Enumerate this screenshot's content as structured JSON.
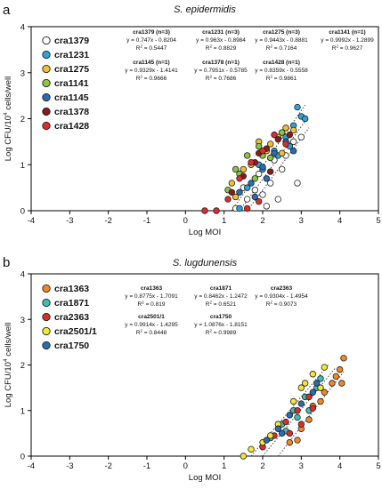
{
  "chart_data": [
    {
      "type": "scatter",
      "panel_letter": "a",
      "title": "S. epidermidis",
      "xlabel": "Log MOI",
      "ylabel_main": "Log CFU/10",
      "ylabel_sup": "4",
      "ylabel_tail": " cells/well",
      "xlim": [
        -4,
        5
      ],
      "ylim": [
        0,
        4
      ],
      "xticks": [
        -4,
        -3,
        -2,
        -1,
        0,
        1,
        2,
        3,
        4,
        5
      ],
      "yticks": [
        0,
        1,
        2,
        3,
        4
      ],
      "grid": false,
      "legend_position": "top-left",
      "series": [
        {
          "name": "cra1379",
          "color": "#ffffff",
          "points": [
            [
              1.3,
              0.05
            ],
            [
              1.6,
              0.25
            ],
            [
              1.8,
              0.45
            ],
            [
              2.0,
              0.35
            ],
            [
              2.2,
              0.6
            ],
            [
              2.5,
              0.9
            ],
            [
              1.9,
              0.8
            ],
            [
              2.6,
              1.2
            ],
            [
              2.8,
              1.5
            ],
            [
              1.5,
              0.5
            ],
            [
              2.3,
              1.1
            ],
            [
              2.9,
              0.6
            ],
            [
              2.1,
              0.1
            ],
            [
              3.0,
              1.6
            ],
            [
              2.4,
              0.25
            ]
          ]
        },
        {
          "name": "cra1231",
          "color": "#2ea3dc",
          "points": [
            [
              1.6,
              0.5
            ],
            [
              2.0,
              0.9
            ],
            [
              2.3,
              1.3
            ],
            [
              2.6,
              1.6
            ],
            [
              2.8,
              1.85
            ],
            [
              3.0,
              2.05
            ],
            [
              2.9,
              2.25
            ],
            [
              3.1,
              2.0
            ],
            [
              2.4,
              1.2
            ],
            [
              1.9,
              1.0
            ],
            [
              2.7,
              1.4
            ],
            [
              1.4,
              0.05
            ]
          ]
        },
        {
          "name": "cra1275",
          "color": "#f2c02e",
          "points": [
            [
              1.2,
              0.6
            ],
            [
              1.5,
              0.9
            ],
            [
              1.9,
              1.5
            ],
            [
              2.1,
              1.3
            ],
            [
              2.4,
              1.6
            ],
            [
              2.6,
              1.8
            ],
            [
              2.8,
              1.75
            ],
            [
              1.3,
              0.3
            ],
            [
              1.7,
              1.0
            ],
            [
              2.2,
              1.45
            ],
            [
              2.5,
              1.25
            ]
          ]
        },
        {
          "name": "cra1141",
          "color": "#8cc63f",
          "points": [
            [
              1.3,
              0.9
            ],
            [
              1.6,
              1.2
            ],
            [
              1.9,
              1.4
            ],
            [
              2.2,
              1.15
            ],
            [
              2.5,
              1.7
            ],
            [
              1.8,
              0.7
            ],
            [
              2.0,
              1.2
            ],
            [
              1.1,
              0.45
            ],
            [
              1.4,
              0.8
            ]
          ]
        },
        {
          "name": "cra1145",
          "color": "#2b6cb3",
          "points": [
            [
              1.4,
              0.4
            ],
            [
              1.7,
              0.6
            ],
            [
              2.0,
              0.95
            ],
            [
              2.3,
              1.25
            ],
            [
              2.6,
              1.5
            ],
            [
              2.8,
              1.3
            ],
            [
              2.1,
              0.7
            ],
            [
              1.8,
              0.3
            ]
          ]
        },
        {
          "name": "cra1378",
          "color": "#8b1a1a",
          "points": [
            [
              1.2,
              0.4
            ],
            [
              1.5,
              0.75
            ],
            [
              1.8,
              1.05
            ],
            [
              2.1,
              1.35
            ],
            [
              2.4,
              1.55
            ],
            [
              2.7,
              1.65
            ],
            [
              2.2,
              0.85
            ],
            [
              1.9,
              1.25
            ]
          ]
        },
        {
          "name": "cra1428",
          "color": "#e02b2b",
          "points": [
            [
              0.5,
              0.0
            ],
            [
              0.8,
              0.0
            ],
            [
              1.1,
              0.25
            ],
            [
              1.4,
              0.7
            ],
            [
              1.7,
              1.05
            ],
            [
              2.0,
              1.3
            ],
            [
              2.3,
              1.65
            ],
            [
              2.6,
              1.45
            ],
            [
              1.6,
              0.05
            ],
            [
              1.9,
              0.2
            ]
          ]
        }
      ],
      "fit_lines": [
        [
          [
            1.2,
            0.0
          ],
          [
            3.1,
            2.3
          ]
        ],
        [
          [
            1.4,
            0.0
          ],
          [
            3.15,
            2.0
          ]
        ],
        [
          [
            1.6,
            0.0
          ],
          [
            3.2,
            1.8
          ]
        ]
      ],
      "annotations": [
        {
          "title": "cra1379 (n=3)",
          "eq": "y = 0.747x - 0.8204",
          "r2": "0.5447"
        },
        {
          "title": "cra1231 (n=3)",
          "eq": "y = 0.963x - 0.8984",
          "r2": "0.8829"
        },
        {
          "title": "cra1275 (n=3)",
          "eq": "y = 0.9443x - 0.8881",
          "r2": "0.7164"
        },
        {
          "title": "cra1141 (n=1)",
          "eq": "y = 0.9992x - 1.2899",
          "r2": "0.9627"
        },
        {
          "title": "cra1145 (n=1)",
          "eq": "y = 0.9329x - 1.4141",
          "r2": "0.9666"
        },
        {
          "title": "cra1378 (n=1)",
          "eq": "y = 0.7951x - 0.5785",
          "r2": "0.7686"
        },
        {
          "title": "cra1428 (n=1)",
          "eq": "y = 0.8359x - 0.5558",
          "r2": "0.9861"
        }
      ]
    },
    {
      "type": "scatter",
      "panel_letter": "b",
      "title": "S. lugdunensis",
      "xlabel": "Log MOI",
      "ylabel_main": "Log CFU/10",
      "ylabel_sup": "4",
      "ylabel_tail": " cells/well",
      "xlim": [
        -4,
        5
      ],
      "ylim": [
        0,
        4
      ],
      "xticks": [
        -4,
        -3,
        -2,
        -1,
        0,
        1,
        2,
        3,
        4,
        5
      ],
      "yticks": [
        0,
        1,
        2,
        3,
        4
      ],
      "grid": false,
      "legend_position": "top-left",
      "series": [
        {
          "name": "cra1363",
          "color": "#f08a24",
          "points": [
            [
              2.9,
              0.35
            ],
            [
              3.2,
              0.8
            ],
            [
              3.5,
              1.2
            ],
            [
              3.8,
              1.6
            ],
            [
              4.0,
              1.9
            ],
            [
              4.1,
              2.15
            ],
            [
              3.6,
              1.4
            ],
            [
              3.3,
              1.1
            ],
            [
              3.9,
              1.75
            ],
            [
              2.7,
              0.3
            ],
            [
              3.0,
              0.6
            ],
            [
              4.05,
              1.6
            ]
          ]
        },
        {
          "name": "cra1871",
          "color": "#3fbfb0",
          "points": [
            [
              2.2,
              0.4
            ],
            [
              2.5,
              0.7
            ],
            [
              2.8,
              1.0
            ],
            [
              3.1,
              1.3
            ],
            [
              3.4,
              1.5
            ],
            [
              3.2,
              1.0
            ],
            [
              2.6,
              0.55
            ],
            [
              2.9,
              0.85
            ],
            [
              3.5,
              1.7
            ]
          ]
        },
        {
          "name": "cra2363",
          "color": "#e02b2b",
          "points": [
            [
              2.0,
              0.2
            ],
            [
              2.3,
              0.45
            ],
            [
              2.6,
              0.75
            ],
            [
              2.9,
              1.0
            ],
            [
              3.2,
              1.3
            ],
            [
              3.0,
              0.7
            ],
            [
              2.7,
              0.5
            ],
            [
              3.3,
              1.05
            ]
          ]
        },
        {
          "name": "cra2501/1",
          "color": "#f5e733",
          "points": [
            [
              1.7,
              0.15
            ],
            [
              2.0,
              0.3
            ],
            [
              2.4,
              0.7
            ],
            [
              2.8,
              1.2
            ],
            [
              3.0,
              1.5
            ],
            [
              3.3,
              1.8
            ],
            [
              3.6,
              1.95
            ],
            [
              3.5,
              1.5
            ],
            [
              3.1,
              1.6
            ],
            [
              2.2,
              0.45
            ],
            [
              1.5,
              0.0
            ]
          ]
        },
        {
          "name": "cra1750",
          "color": "#2b6cb3",
          "points": [
            [
              2.1,
              0.35
            ],
            [
              2.4,
              0.6
            ],
            [
              2.7,
              0.9
            ],
            [
              3.0,
              1.15
            ],
            [
              3.3,
              1.4
            ],
            [
              2.5,
              0.5
            ],
            [
              3.4,
              1.6
            ]
          ]
        }
      ],
      "fit_lines": [
        [
          [
            1.7,
            0.0
          ],
          [
            3.7,
            2.0
          ]
        ],
        [
          [
            2.0,
            0.0
          ],
          [
            3.9,
            1.95
          ]
        ],
        [
          [
            2.4,
            0.0
          ],
          [
            4.1,
            1.85
          ]
        ]
      ],
      "annotations": [
        {
          "title": "cra1363",
          "eq": "y = 0.8775x - 1.7091",
          "r2": "0.819"
        },
        {
          "title": "cra1871",
          "eq": "y = 0.8462x - 1.2472",
          "r2": "0.6521"
        },
        {
          "title": "cra2363",
          "eq": "y = 0.9304x - 1.4954",
          "r2": "0.9073"
        },
        {
          "title": "cra2501/1",
          "eq": "y = 0.9914x - 1.4295",
          "r2": "0.8448"
        },
        {
          "title": "cra1750",
          "eq": "y = 1.0876x - 1.8151",
          "r2": "0.9989"
        }
      ]
    }
  ]
}
